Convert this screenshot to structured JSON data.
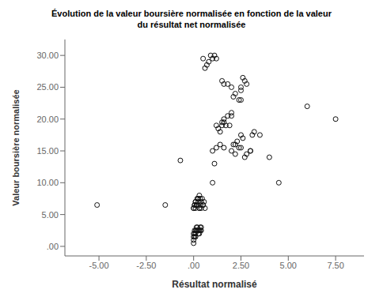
{
  "chart_data": {
    "type": "scatter",
    "title": "Évolution de la valeur boursière normalisée en fonction de la valeur",
    "subtitle": "du résultat net normalisée",
    "x_label": "Résultat normalisé",
    "y_label": "Valeur boursière normalisée",
    "xlim": [
      -6.8,
      9.0
    ],
    "ylim": [
      -1.5,
      32.5
    ],
    "xticks": [
      {
        "value": -5.0,
        "label": "-5.00"
      },
      {
        "value": -2.5,
        "label": "-2.50"
      },
      {
        "value": 0.0,
        "label": ".00"
      },
      {
        "value": 2.5,
        "label": "2.50"
      },
      {
        "value": 5.0,
        "label": "5.00"
      },
      {
        "value": 7.5,
        "label": "7.50"
      }
    ],
    "yticks": [
      {
        "value": 0.0,
        "label": ".00"
      },
      {
        "value": 5.0,
        "label": "5.00"
      },
      {
        "value": 10.0,
        "label": "10.00"
      },
      {
        "value": 15.0,
        "label": "15.00"
      },
      {
        "value": 20.0,
        "label": "20.00"
      },
      {
        "value": 25.0,
        "label": "25.00"
      },
      {
        "value": 30.0,
        "label": "30.00"
      }
    ],
    "grid": false,
    "color": "#111111",
    "marker": "open-circle",
    "x": [
      -5.1,
      -1.5,
      -0.7,
      0.0,
      0.0,
      0.0,
      0.0,
      0.05,
      0.05,
      0.05,
      0.1,
      0.1,
      0.1,
      0.15,
      0.15,
      0.2,
      0.2,
      0.25,
      0.25,
      0.3,
      0.3,
      0.35,
      0.35,
      0.4,
      0.4,
      0.05,
      0.1,
      0.15,
      0.2,
      0.25,
      0.3,
      0.35,
      0.4,
      0.45,
      0.5,
      0.0,
      0.05,
      0.1,
      0.15,
      0.2,
      0.25,
      0.3,
      0.35,
      0.4,
      0.5,
      0.55,
      0.6,
      0.0,
      0.1,
      0.2,
      0.3,
      1.0,
      1.1,
      1.2,
      1.3,
      1.4,
      1.5,
      1.5,
      1.6,
      1.6,
      1.7,
      1.8,
      1.9,
      2.0,
      2.0,
      2.1,
      2.2,
      2.3,
      2.4,
      2.5,
      2.5,
      2.6,
      2.7,
      2.8,
      3.0,
      3.1,
      3.2,
      3.5,
      4.0,
      4.5,
      6.0,
      7.5,
      0.5,
      0.6,
      0.7,
      0.8,
      0.9,
      1.0,
      1.1,
      1.2,
      1.5,
      1.6,
      1.8,
      2.0,
      2.1,
      2.2,
      2.4,
      2.5,
      1.0,
      1.2,
      1.4,
      1.6,
      2.0,
      2.2,
      2.5,
      2.5,
      2.6,
      2.7,
      2.8,
      3.0
    ],
    "values": [
      6.5,
      6.5,
      13.5,
      2.0,
      1.5,
      1.0,
      0.5,
      2.5,
      2.0,
      1.5,
      2.5,
      2.0,
      1.5,
      3.0,
      2.5,
      3.0,
      2.5,
      2.5,
      2.0,
      2.5,
      2.0,
      3.0,
      2.5,
      3.0,
      2.5,
      6.5,
      7.0,
      6.5,
      7.5,
      7.5,
      8.0,
      7.5,
      7.0,
      7.5,
      6.5,
      6.0,
      6.5,
      7.0,
      6.5,
      7.5,
      7.0,
      6.0,
      6.5,
      6.0,
      6.5,
      7.0,
      6.0,
      6.0,
      6.0,
      6.5,
      6.0,
      10.0,
      13.0,
      19.0,
      18.5,
      18.0,
      19.5,
      19.0,
      20.0,
      19.5,
      19.0,
      20.5,
      19.0,
      21.0,
      20.5,
      16.0,
      16.0,
      16.5,
      15.5,
      17.5,
      15.5,
      17.0,
      14.0,
      14.5,
      15.0,
      17.5,
      18.0,
      17.5,
      14.0,
      10.0,
      22.0,
      20.0,
      29.5,
      28.0,
      28.5,
      29.0,
      30.0,
      29.5,
      30.0,
      29.5,
      26.0,
      25.5,
      25.5,
      25.0,
      23.5,
      24.0,
      23.0,
      24.5,
      15.0,
      15.5,
      16.0,
      15.5,
      15.0,
      14.5,
      23.0,
      25.0,
      26.5,
      26.0,
      25.5,
      15.0
    ]
  }
}
